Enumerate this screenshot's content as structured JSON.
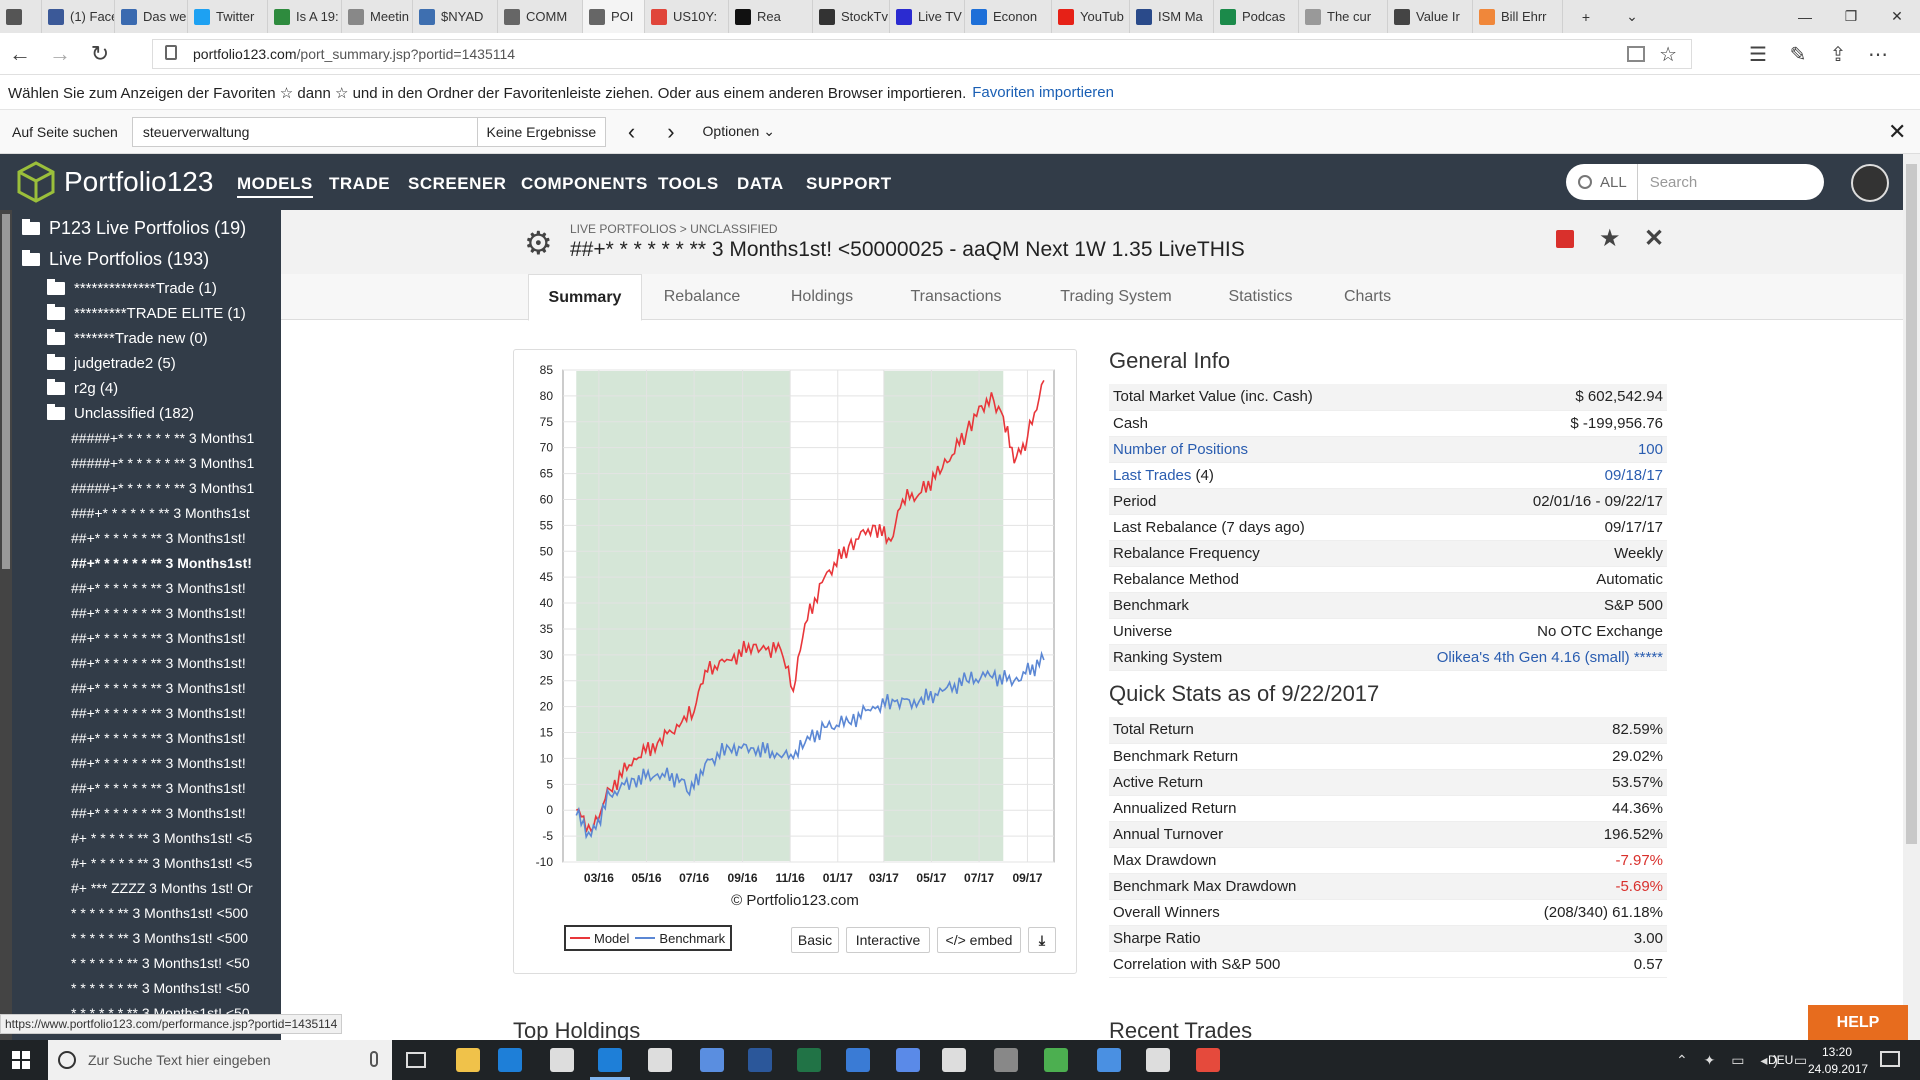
{
  "browser": {
    "tabs": [
      {
        "label": "",
        "icon": "tab-actions-icon",
        "color": "#555555"
      },
      {
        "label": "(1) Face",
        "icon": "facebook-icon",
        "color": "#3b5998"
      },
      {
        "label": "Das we",
        "icon": "page-icon",
        "color": "#3a6ab0"
      },
      {
        "label": "Twitter",
        "icon": "twitter-icon",
        "color": "#1da1f2"
      },
      {
        "label": "Is A 19:",
        "icon": "s-icon",
        "color": "#2e8b3e"
      },
      {
        "label": "Meetin",
        "icon": "cnn-icon",
        "color": "#888888"
      },
      {
        "label": "$NYAD",
        "icon": "chart-icon",
        "color": "#3e6fb0"
      },
      {
        "label": "COMM",
        "icon": "p123-icon",
        "color": "#666666"
      },
      {
        "label": "POI",
        "icon": "p123-icon",
        "color": "#666666",
        "active": true
      },
      {
        "label": "US10Y:",
        "icon": "nbc-icon",
        "color": "#e0453a"
      },
      {
        "label": "Rea",
        "icon": "v-icon",
        "color": "#111111"
      },
      {
        "label": "StockTv",
        "icon": "st-icon",
        "color": "#333333"
      },
      {
        "label": "Live TV",
        "icon": "b-icon",
        "color": "#2b2bd0"
      },
      {
        "label": "Econon",
        "icon": "c-icon",
        "color": "#1d6fd8"
      },
      {
        "label": "YouTub",
        "icon": "youtube-icon",
        "color": "#e62117"
      },
      {
        "label": "ISM Ma",
        "icon": "chart-icon",
        "color": "#2a4a8a"
      },
      {
        "label": "Podcas",
        "icon": "n-icon",
        "color": "#1b8a4a"
      },
      {
        "label": "The cur",
        "icon": "page-icon",
        "color": "#999999"
      },
      {
        "label": "Value Ir",
        "icon": "g-icon",
        "color": "#444444"
      },
      {
        "label": "Bill Ehrr",
        "icon": "o-icon",
        "color": "#f0873a"
      }
    ],
    "url_host": "portfolio123.com",
    "url_path": "/port_summary.jsp?portid=1435114",
    "favorites_text": "Wählen Sie zum Anzeigen der Favoriten  ☆  dann ☆ und in den Ordner der Favoritenleiste ziehen. Oder aus einem anderen Browser importieren.",
    "favorites_link": "Favoriten importieren",
    "find_label": "Auf Seite suchen",
    "find_value": "steuerverwaltung",
    "find_result": "Keine Ergebnisse",
    "find_options": "Optionen",
    "status_url": "https://www.portfolio123.com/performance.jsp?portid=1435114"
  },
  "site": {
    "brand": "Portfolio123",
    "nav": [
      "MODELS",
      "TRADE",
      "SCREENER",
      "COMPONENTS",
      "TOOLS",
      "DATA",
      "SUPPORT"
    ],
    "search_scope": "ALL",
    "search_placeholder": "Search"
  },
  "sidebar": {
    "groups": [
      {
        "label": "P123 Live Portfolios (19)"
      },
      {
        "label": "Live Portfolios (193)"
      }
    ],
    "folders": [
      "**************Trade (1)",
      "*********TRADE ELITE (1)",
      "*******Trade new (0)",
      "judgetrade2 (5)",
      "r2g (4)",
      "Unclassified (182)"
    ],
    "items": [
      "#####+* * * * * * ** 3 Months1",
      "#####+* * * * * * ** 3 Months1",
      "#####+* * * * * * ** 3 Months1",
      "###+* * * * * * ** 3 Months1st",
      "##+* * * * * * ** 3 Months1st!",
      "##+* * * * * * ** 3 Months1st!",
      "##+* * * * * * ** 3 Months1st!",
      "##+* * * * * * ** 3 Months1st!",
      "##+* * * * * * ** 3 Months1st!",
      "##+* * * * * * ** 3 Months1st!",
      "##+* * * * * * ** 3 Months1st!",
      "##+* * * * * * ** 3 Months1st!",
      "##+* * * * * * ** 3 Months1st!",
      "##+* * * * * * ** 3 Months1st!",
      "##+* * * * * * ** 3 Months1st!",
      "##+* * * * * * ** 3 Months1st!",
      "#+ * * * * * ** 3 Months1st! <5",
      "#+ * * * * * ** 3 Months1st! <5",
      "#+ *** ZZZZ 3 Months 1st! Or",
      "* * * * * ** 3 Months1st! <500",
      "* * * * * ** 3 Months1st! <500",
      "* * * * * * ** 3 Months1st! <50",
      "* * * * * * ** 3 Months1st! <50",
      "* * * * * * ** 3 Months1st! <50"
    ],
    "selected_index": 5
  },
  "page": {
    "breadcrumb": "LIVE PORTFOLIOS > UNCLASSIFIED",
    "title": "##+* * * * * * ** 3 Months1st! <50000025 - aaQM Next 1W 1.35 LiveTHIS",
    "tabs": [
      "Summary",
      "Rebalance",
      "Holdings",
      "Transactions",
      "Trading System",
      "Statistics",
      "Charts"
    ],
    "active_tab": "Summary",
    "general_info_title": "General Info",
    "general_info": [
      {
        "label": "Total Market Value (inc. Cash)",
        "value": "$ 602,542.94"
      },
      {
        "label": "Cash",
        "value": "$ -199,956.76"
      },
      {
        "label": "Number of Positions",
        "value": "100",
        "link": true
      },
      {
        "label": "Last Trades",
        "label_extra": " (4)",
        "value": "09/18/17",
        "link": true
      },
      {
        "label": "Period",
        "value": "02/01/16 - 09/22/17"
      },
      {
        "label": "Last Rebalance (7 days ago)",
        "value": "09/17/17"
      },
      {
        "label": "Rebalance Frequency",
        "value": "Weekly"
      },
      {
        "label": "Rebalance Method",
        "value": "Automatic"
      },
      {
        "label": "Benchmark",
        "value": "S&P 500"
      },
      {
        "label": "Universe",
        "value": "No OTC Exchange"
      },
      {
        "label": "Ranking System",
        "value": "Olikea's 4th Gen 4.16 (small) *****",
        "valuelink": true
      }
    ],
    "quick_stats_title": "Quick Stats as of 9/22/2017",
    "quick_stats": [
      {
        "label": "Total Return",
        "value": "82.59%"
      },
      {
        "label": "Benchmark Return",
        "value": "29.02%"
      },
      {
        "label": "Active Return",
        "value": "53.57%"
      },
      {
        "label": "Annualized Return",
        "value": "44.36%"
      },
      {
        "label": "Annual Turnover",
        "value": "196.52%"
      },
      {
        "label": "Max Drawdown",
        "value": "-7.97%",
        "red": true
      },
      {
        "label": "Benchmark Max Drawdown",
        "value": "-5.69%",
        "red": true
      },
      {
        "label": "Overall Winners",
        "value": "(208/340) 61.18%"
      },
      {
        "label": "Sharpe Ratio",
        "value": "3.00"
      },
      {
        "label": "Correlation with S&P 500",
        "value": "0.57"
      }
    ],
    "top_holdings_title": "Top Holdings",
    "recent_trades_title": "Recent Trades",
    "chart_buttons": [
      "Basic",
      "Interactive",
      "</> embed"
    ],
    "help_label": "HELP"
  },
  "chart_data": {
    "type": "line",
    "credit": "© Portfolio123.com",
    "x_ticks": [
      "03/16",
      "05/16",
      "07/16",
      "09/16",
      "11/16",
      "01/17",
      "03/17",
      "05/17",
      "07/17",
      "09/17"
    ],
    "y_ticks": [
      85,
      80,
      75,
      70,
      65,
      60,
      55,
      50,
      45,
      40,
      35,
      30,
      25,
      20,
      15,
      10,
      5,
      0,
      -5,
      -10
    ],
    "ylim": [
      -10,
      85
    ],
    "shaded_periods": [
      [
        "02/16",
        "11/16"
      ],
      [
        "03/17",
        "08/17"
      ]
    ],
    "series": [
      {
        "name": "Model",
        "color": "#e8363a",
        "points": [
          [
            "02/01/16",
            0
          ],
          [
            "02/20/16",
            -4
          ],
          [
            "03/15/16",
            4
          ],
          [
            "04/15/16",
            10
          ],
          [
            "05/15/16",
            13
          ],
          [
            "06/15/16",
            17
          ],
          [
            "07/01/16",
            19
          ],
          [
            "07/15/16",
            27
          ],
          [
            "08/15/16",
            29
          ],
          [
            "09/15/16",
            32
          ],
          [
            "10/01/16",
            31
          ],
          [
            "10/20/16",
            31
          ],
          [
            "11/05/16",
            23
          ],
          [
            "11/20/16",
            36
          ],
          [
            "12/15/16",
            45
          ],
          [
            "01/15/17",
            51
          ],
          [
            "02/15/17",
            55
          ],
          [
            "03/10/17",
            52
          ],
          [
            "03/25/17",
            60
          ],
          [
            "04/15/17",
            61
          ],
          [
            "05/15/17",
            66
          ],
          [
            "06/15/17",
            73
          ],
          [
            "07/01/17",
            78
          ],
          [
            "07/20/17",
            79
          ],
          [
            "08/01/17",
            76
          ],
          [
            "08/15/17",
            67
          ],
          [
            "09/01/17",
            72
          ],
          [
            "09/22/17",
            83
          ]
        ]
      },
      {
        "name": "Benchmark",
        "color": "#5b87d4",
        "points": [
          [
            "02/01/16",
            -1
          ],
          [
            "02/20/16",
            -5
          ],
          [
            "03/15/16",
            3
          ],
          [
            "04/15/16",
            6
          ],
          [
            "05/15/16",
            7
          ],
          [
            "06/15/16",
            6
          ],
          [
            "06/25/16",
            3
          ],
          [
            "07/15/16",
            9
          ],
          [
            "08/15/16",
            12
          ],
          [
            "09/15/16",
            12
          ],
          [
            "10/15/16",
            11
          ],
          [
            "11/05/16",
            10
          ],
          [
            "11/20/16",
            13
          ],
          [
            "12/15/16",
            16
          ],
          [
            "01/15/17",
            17
          ],
          [
            "02/15/17",
            20
          ],
          [
            "03/15/17",
            21
          ],
          [
            "04/15/17",
            21
          ],
          [
            "05/15/17",
            23
          ],
          [
            "06/15/17",
            25
          ],
          [
            "07/15/17",
            26
          ],
          [
            "08/15/17",
            25
          ],
          [
            "09/22/17",
            29
          ]
        ]
      }
    ]
  },
  "taskbar": {
    "search_placeholder": "Zur Suche Text hier eingeben",
    "lang": "DEU",
    "time": "13:20",
    "date": "24.09.2017"
  }
}
